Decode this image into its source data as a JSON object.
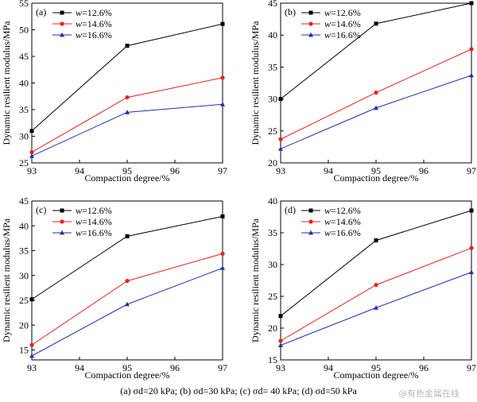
{
  "caption": "(a) σd=20 kPa; (b) σd=30 kPa; (c) σd= 40 kPa; (d) σd=50 kPa",
  "watermark": "@有色金属在线",
  "colors": {
    "w12.6": "#000000",
    "w14.6": "#e8201f",
    "w16.6": "#1f2fb0"
  },
  "chart_data": [
    {
      "panel": "(a)",
      "type": "line",
      "xlabel": "Compaction degree/%",
      "ylabel": "Dynamic resilient modulus/MPa",
      "x": [
        93,
        95,
        97
      ],
      "xlim": [
        93,
        97
      ],
      "xticks": [
        93,
        94,
        95,
        96,
        97
      ],
      "ylim": [
        25,
        55
      ],
      "yticks": [
        25,
        30,
        35,
        40,
        45,
        50,
        55
      ],
      "legend_position": "top-left",
      "series": [
        {
          "name": "w=12.6%",
          "marker": "square",
          "values": [
            31.0,
            47.0,
            51.1
          ]
        },
        {
          "name": "w=14.6%",
          "marker": "circle",
          "values": [
            27.0,
            37.3,
            41.0
          ]
        },
        {
          "name": "w=16.6%",
          "marker": "triangle",
          "values": [
            26.3,
            34.5,
            36.0
          ]
        }
      ]
    },
    {
      "panel": "(b)",
      "type": "line",
      "xlabel": "Compaction degree/%",
      "ylabel": "Dynamic resilient modulus/MPa",
      "x": [
        93,
        95,
        97
      ],
      "xlim": [
        93,
        97
      ],
      "xticks": [
        93,
        94,
        95,
        96,
        97
      ],
      "ylim": [
        20,
        45
      ],
      "yticks": [
        20,
        25,
        30,
        35,
        40,
        45
      ],
      "legend_position": "top-left",
      "series": [
        {
          "name": "w=12.6%",
          "marker": "square",
          "values": [
            30.0,
            41.8,
            45.0
          ]
        },
        {
          "name": "w=14.6%",
          "marker": "circle",
          "values": [
            23.7,
            31.0,
            37.8
          ]
        },
        {
          "name": "w=16.6%",
          "marker": "triangle",
          "values": [
            22.2,
            28.6,
            33.7
          ]
        }
      ]
    },
    {
      "panel": "(c)",
      "type": "line",
      "xlabel": "Compaction degree/%",
      "ylabel": "Dynamic resilient modulus/MPa",
      "x": [
        93,
        95,
        97
      ],
      "xlim": [
        93,
        97
      ],
      "xticks": [
        93,
        94,
        95,
        96,
        97
      ],
      "ylim": [
        13,
        45
      ],
      "yticks": [
        15,
        20,
        25,
        30,
        35,
        40,
        45
      ],
      "legend_position": "top-left",
      "series": [
        {
          "name": "w=12.6%",
          "marker": "square",
          "values": [
            25.2,
            37.9,
            41.9
          ]
        },
        {
          "name": "w=14.6%",
          "marker": "circle",
          "values": [
            16.0,
            28.9,
            34.4
          ]
        },
        {
          "name": "w=16.6%",
          "marker": "triangle",
          "values": [
            13.8,
            24.2,
            31.5
          ]
        }
      ]
    },
    {
      "panel": "(d)",
      "type": "line",
      "xlabel": "Compaction degree/%",
      "ylabel": "Dynamic resilient modulus/MPa",
      "x": [
        93,
        95,
        97
      ],
      "xlim": [
        93,
        97
      ],
      "xticks": [
        93,
        94,
        95,
        96,
        97
      ],
      "ylim": [
        15,
        40
      ],
      "yticks": [
        15,
        20,
        25,
        30,
        35,
        40
      ],
      "legend_position": "top-left",
      "series": [
        {
          "name": "w=12.6%",
          "marker": "square",
          "values": [
            21.9,
            33.8,
            38.5
          ]
        },
        {
          "name": "w=14.6%",
          "marker": "circle",
          "values": [
            18.0,
            26.8,
            32.6
          ]
        },
        {
          "name": "w=16.6%",
          "marker": "triangle",
          "values": [
            17.3,
            23.2,
            28.8
          ]
        }
      ]
    }
  ]
}
